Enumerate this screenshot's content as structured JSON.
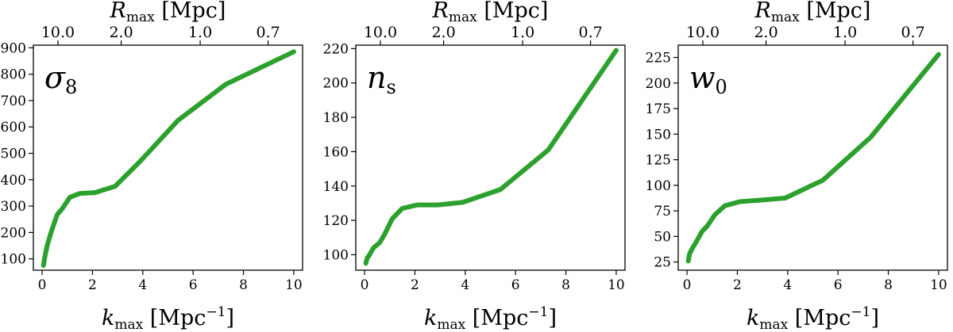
{
  "style": {
    "line_color": "#2ca02c"
  },
  "chart_data": [
    {
      "type": "line",
      "panel_label": {
        "main": "σ",
        "sub": "8"
      },
      "xlabel": {
        "main": "k",
        "sub": "max",
        "rest": " [Mpc",
        "sup": "−1",
        "end": "]"
      },
      "top_xlabel": {
        "main": "R",
        "sub": "max",
        "rest": " [Mpc]"
      },
      "xlim": [
        -0.35,
        10.35
      ],
      "ylim": [
        57,
        910
      ],
      "xticks": [
        0,
        2,
        4,
        6,
        8,
        10
      ],
      "xtick_labels": [
        "0",
        "2",
        "4",
        "6",
        "8",
        "10"
      ],
      "yticks": [
        100,
        200,
        300,
        400,
        500,
        600,
        700,
        800,
        900
      ],
      "ytick_labels": [
        "100",
        "200",
        "300",
        "400",
        "500",
        "600",
        "700",
        "800",
        "900"
      ],
      "top_xticks": [
        0.628,
        3.14,
        6.28,
        8.98
      ],
      "top_xtick_labels": [
        "10.0",
        "2.0",
        "1.0",
        "0.7"
      ],
      "x": [
        0.05,
        0.1,
        0.2,
        0.35,
        0.6,
        0.8,
        1.1,
        1.5,
        2.1,
        2.9,
        3.9,
        5.4,
        7.3,
        10.0
      ],
      "y": [
        75,
        105,
        150,
        200,
        268,
        290,
        333,
        348,
        351,
        375,
        470,
        625,
        762,
        885
      ]
    },
    {
      "type": "line",
      "panel_label": {
        "main": "n",
        "sub": "s"
      },
      "xlabel": {
        "main": "k",
        "sub": "max",
        "rest": " [Mpc",
        "sup": "−1",
        "end": "]"
      },
      "top_xlabel": {
        "main": "R",
        "sub": "max",
        "rest": " [Mpc]"
      },
      "xlim": [
        -0.35,
        10.35
      ],
      "ylim": [
        91,
        222
      ],
      "xticks": [
        0,
        2,
        4,
        6,
        8,
        10
      ],
      "xtick_labels": [
        "0",
        "2",
        "4",
        "6",
        "8",
        "10"
      ],
      "yticks": [
        100,
        120,
        140,
        160,
        180,
        200,
        220
      ],
      "ytick_labels": [
        "100",
        "120",
        "140",
        "160",
        "180",
        "200",
        "220"
      ],
      "top_xticks": [
        0.628,
        3.14,
        6.28,
        8.98
      ],
      "top_xtick_labels": [
        "10.0",
        "2.0",
        "1.0",
        "0.7"
      ],
      "x": [
        0.05,
        0.1,
        0.2,
        0.35,
        0.6,
        0.8,
        1.1,
        1.5,
        2.1,
        2.9,
        3.9,
        5.4,
        7.3,
        10.0
      ],
      "y": [
        95,
        98,
        100,
        104,
        107,
        112,
        121,
        127,
        129,
        129,
        130.5,
        138,
        161,
        219
      ]
    },
    {
      "type": "line",
      "panel_label": {
        "main": "w",
        "sub": "0"
      },
      "xlabel": {
        "main": "k",
        "sub": "max",
        "rest": " [Mpc",
        "sup": "−1",
        "end": "]"
      },
      "top_xlabel": {
        "main": "R",
        "sub": "max",
        "rest": " [Mpc]"
      },
      "xlim": [
        -0.35,
        10.35
      ],
      "ylim": [
        17,
        237
      ],
      "xticks": [
        0,
        2,
        4,
        6,
        8,
        10
      ],
      "xtick_labels": [
        "0",
        "2",
        "4",
        "6",
        "8",
        "10"
      ],
      "yticks": [
        25,
        50,
        75,
        100,
        125,
        150,
        175,
        200,
        225
      ],
      "ytick_labels": [
        "25",
        "50",
        "75",
        "100",
        "125",
        "150",
        "175",
        "200",
        "225"
      ],
      "top_xticks": [
        0.628,
        3.14,
        6.28,
        8.98
      ],
      "top_xtick_labels": [
        "10.0",
        "2.0",
        "1.0",
        "0.7"
      ],
      "x": [
        0.05,
        0.1,
        0.2,
        0.35,
        0.6,
        0.8,
        1.1,
        1.5,
        2.1,
        2.9,
        3.9,
        5.4,
        7.3,
        10.0
      ],
      "y": [
        26,
        33,
        38,
        44,
        55,
        60,
        71,
        80,
        84,
        85.5,
        87.5,
        105,
        147,
        228
      ]
    }
  ]
}
